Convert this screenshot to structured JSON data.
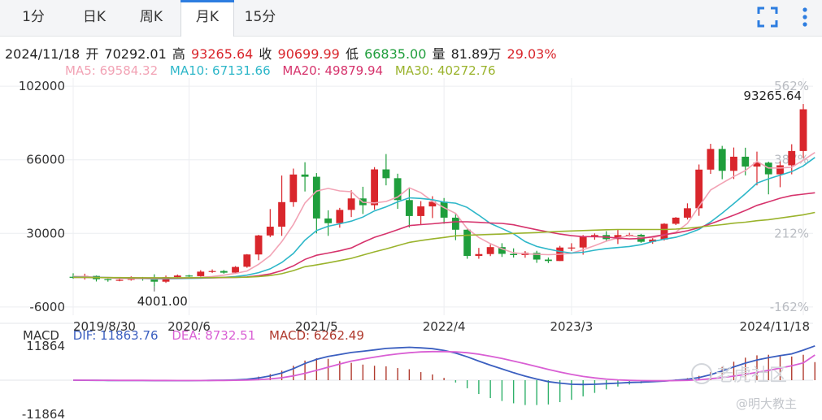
{
  "tabs": [
    {
      "label": "1分",
      "active": false
    },
    {
      "label": "日K",
      "active": false
    },
    {
      "label": "周K",
      "active": false
    },
    {
      "label": "月K",
      "active": true
    },
    {
      "label": "15分",
      "active": false
    }
  ],
  "toolbar": {
    "fullscreen_icon": "fullscreen-icon",
    "more_icon": "more-vertical-icon"
  },
  "info": {
    "date": "2024/11/18",
    "open_label": "开",
    "open_value": "70292.01",
    "high_label": "高",
    "high_value": "93265.64",
    "close_label": "收",
    "close_value": "90699.99",
    "low_label": "低",
    "low_value": "66835.00",
    "volume_label": "量",
    "volume_value": "81.89万",
    "change_value": "29.03%"
  },
  "ma": {
    "ma5": "MA5: 69584.32",
    "ma10": "MA10: 67131.66",
    "ma20": "MA20: 49879.94",
    "ma30": "MA30: 40272.76"
  },
  "macd": {
    "title": "MACD",
    "dif": "DIF: 11863.76",
    "dea": "DEA: 8732.51",
    "macd": "MACD: 6262.49"
  },
  "watermark": {
    "logo_text": "老虎社区",
    "author": "@明大教主"
  },
  "colors": {
    "up": "#d9262c",
    "down": "#1f9e3c",
    "ma5": "#f2a3b5",
    "ma10": "#2eb7c9",
    "ma20": "#d6336c",
    "ma30": "#9ab32c",
    "dif": "#3b5fc0",
    "dea": "#d95fd4",
    "accent": "#2d7de0"
  },
  "chart_data": [
    {
      "type": "candlestick",
      "title": "",
      "y_tick_labels": [
        "102000",
        "66000",
        "30000",
        "-6000"
      ],
      "y_ticks": [
        102000,
        66000,
        30000,
        -6000
      ],
      "right_tick_labels": [
        "562%",
        "387%",
        "212%",
        "-162%"
      ],
      "x_tick_labels": [
        "2019/8/30",
        "2020/6",
        "2021/5",
        "2022/4",
        "2023/3",
        "2024/11/18"
      ],
      "x_tick_index": [
        0,
        10,
        21,
        32,
        43,
        63
      ],
      "ylim": [
        -10000,
        106000
      ],
      "max_label": "93265.64",
      "min_label": "4001.00",
      "candles": [
        {
          "o": 8800,
          "c": 8300,
          "h": 10500,
          "l": 7800
        },
        {
          "o": 8300,
          "c": 9200,
          "h": 10300,
          "l": 7400
        },
        {
          "o": 9200,
          "c": 7600,
          "h": 9400,
          "l": 6500
        },
        {
          "o": 7600,
          "c": 7200,
          "h": 7800,
          "l": 6400
        },
        {
          "o": 7200,
          "c": 7300,
          "h": 7700,
          "l": 6600
        },
        {
          "o": 7300,
          "c": 8500,
          "h": 9000,
          "l": 6900
        },
        {
          "o": 8500,
          "c": 8300,
          "h": 8700,
          "l": 6900
        },
        {
          "o": 8400,
          "c": 6400,
          "h": 10000,
          "l": 4001
        },
        {
          "o": 6400,
          "c": 8600,
          "h": 9400,
          "l": 5800
        },
        {
          "o": 8600,
          "c": 9400,
          "h": 9900,
          "l": 8300
        },
        {
          "o": 9400,
          "c": 9100,
          "h": 9800,
          "l": 8700
        },
        {
          "o": 9100,
          "c": 11300,
          "h": 12000,
          "l": 8900
        },
        {
          "o": 11300,
          "c": 11600,
          "h": 12400,
          "l": 10700
        },
        {
          "o": 11600,
          "c": 10800,
          "h": 12100,
          "l": 10300
        },
        {
          "o": 10800,
          "c": 13600,
          "h": 14000,
          "l": 10200
        },
        {
          "o": 13700,
          "c": 19700,
          "h": 19900,
          "l": 13200
        },
        {
          "o": 19700,
          "c": 29000,
          "h": 29300,
          "l": 16900
        },
        {
          "o": 29000,
          "c": 33300,
          "h": 41900,
          "l": 28200
        },
        {
          "o": 33300,
          "c": 45300,
          "h": 58300,
          "l": 28800
        },
        {
          "o": 45300,
          "c": 58800,
          "h": 61700,
          "l": 43000
        },
        {
          "o": 58800,
          "c": 57700,
          "h": 64800,
          "l": 50500
        },
        {
          "o": 57700,
          "c": 37300,
          "h": 59500,
          "l": 30000
        },
        {
          "o": 37300,
          "c": 35000,
          "h": 41300,
          "l": 28800
        },
        {
          "o": 35000,
          "c": 41500,
          "h": 42500,
          "l": 32800
        },
        {
          "o": 41500,
          "c": 47100,
          "h": 51100,
          "l": 38000
        },
        {
          "o": 47100,
          "c": 43800,
          "h": 52800,
          "l": 39500
        },
        {
          "o": 43800,
          "c": 61300,
          "h": 62400,
          "l": 41600
        },
        {
          "o": 61300,
          "c": 57000,
          "h": 68800,
          "l": 53500
        },
        {
          "o": 57000,
          "c": 46300,
          "h": 59200,
          "l": 42000
        },
        {
          "o": 46300,
          "c": 38500,
          "h": 51900,
          "l": 32900
        },
        {
          "o": 38500,
          "c": 43200,
          "h": 45800,
          "l": 34300
        },
        {
          "o": 43200,
          "c": 45500,
          "h": 48200,
          "l": 37500
        },
        {
          "o": 45500,
          "c": 37700,
          "h": 47300,
          "l": 34700
        },
        {
          "o": 37700,
          "c": 31800,
          "h": 40000,
          "l": 26700
        },
        {
          "o": 31800,
          "c": 19000,
          "h": 32300,
          "l": 17600
        },
        {
          "o": 19000,
          "c": 19900,
          "h": 22900,
          "l": 17600
        },
        {
          "o": 19900,
          "c": 23300,
          "h": 24600,
          "l": 18900
        },
        {
          "o": 23300,
          "c": 20000,
          "h": 25200,
          "l": 18500
        },
        {
          "o": 20000,
          "c": 19400,
          "h": 22700,
          "l": 18200
        },
        {
          "o": 19400,
          "c": 20500,
          "h": 21400,
          "l": 18100
        },
        {
          "o": 20500,
          "c": 17200,
          "h": 21500,
          "l": 15600
        },
        {
          "o": 17200,
          "c": 16500,
          "h": 18200,
          "l": 15500
        },
        {
          "o": 16500,
          "c": 23100,
          "h": 23900,
          "l": 16500
        },
        {
          "o": 23100,
          "c": 23100,
          "h": 25200,
          "l": 21400
        },
        {
          "o": 23100,
          "c": 28500,
          "h": 29200,
          "l": 19600
        },
        {
          "o": 28500,
          "c": 29200,
          "h": 30000,
          "l": 26900
        },
        {
          "o": 29200,
          "c": 27200,
          "h": 31100,
          "l": 26300
        },
        {
          "o": 27200,
          "c": 29200,
          "h": 31800,
          "l": 24800
        },
        {
          "o": 29200,
          "c": 29300,
          "h": 30300,
          "l": 28400
        },
        {
          "o": 29300,
          "c": 25900,
          "h": 29800,
          "l": 25400
        },
        {
          "o": 25900,
          "c": 27000,
          "h": 28200,
          "l": 24900
        },
        {
          "o": 27000,
          "c": 34700,
          "h": 35000,
          "l": 26500
        },
        {
          "o": 34700,
          "c": 37700,
          "h": 38000,
          "l": 34100
        },
        {
          "o": 37700,
          "c": 42300,
          "h": 44700,
          "l": 36800
        },
        {
          "o": 42300,
          "c": 61200,
          "h": 63700,
          "l": 38600
        },
        {
          "o": 61200,
          "c": 71300,
          "h": 73800,
          "l": 59100
        },
        {
          "o": 71300,
          "c": 60600,
          "h": 72800,
          "l": 56500
        },
        {
          "o": 60600,
          "c": 67500,
          "h": 72000,
          "l": 56600
        },
        {
          "o": 67500,
          "c": 62700,
          "h": 71900,
          "l": 58400
        },
        {
          "o": 62700,
          "c": 64600,
          "h": 70000,
          "l": 53500
        },
        {
          "o": 64600,
          "c": 58900,
          "h": 65100,
          "l": 49100
        },
        {
          "o": 58900,
          "c": 63300,
          "h": 65200,
          "l": 52600
        },
        {
          "o": 63300,
          "c": 70300,
          "h": 73600,
          "l": 58900
        },
        {
          "o": 70292.01,
          "c": 90699.99,
          "h": 93265.64,
          "l": 66835
        }
      ],
      "series": [
        {
          "name": "MA5",
          "values": [
            9000,
            8900,
            8500,
            8200,
            8000,
            7900,
            7900,
            7700,
            7800,
            8000,
            8300,
            8500,
            8900,
            9600,
            10500,
            11600,
            14900,
            19100,
            26000,
            34300,
            44900,
            50700,
            52000,
            50800,
            50400,
            45200,
            44900,
            45600,
            47800,
            52300,
            49900,
            45700,
            42600,
            39800,
            32400,
            28000,
            25000,
            22500,
            20500,
            20000,
            19800,
            19600,
            19800,
            20300,
            22000,
            24000,
            26200,
            27800,
            28900,
            28100,
            27900,
            29300,
            30600,
            34900,
            43200,
            51200,
            54600,
            57800,
            60700,
            65200,
            62000,
            62000,
            62400,
            65800,
            69584
          ]
        },
        {
          "name": "MA10",
          "values": [
            8700,
            8600,
            8500,
            8400,
            8300,
            8200,
            8100,
            8000,
            7900,
            7900,
            8000,
            8100,
            8300,
            8500,
            8900,
            9600,
            10800,
            12700,
            15800,
            20200,
            26700,
            31400,
            33500,
            34700,
            36000,
            38000,
            41000,
            43000,
            45400,
            47400,
            47100,
            46500,
            45300,
            44800,
            42700,
            38900,
            34900,
            32400,
            29800,
            26000,
            23600,
            22300,
            21200,
            20400,
            20800,
            21800,
            22600,
            23100,
            23600,
            24500,
            26000,
            27200,
            28100,
            29800,
            32000,
            35600,
            39900,
            44600,
            49400,
            54600,
            56700,
            58500,
            60200,
            63000,
            67131
          ]
        },
        {
          "name": "MA20",
          "values": [
            8500,
            8500,
            8400,
            8400,
            8300,
            8300,
            8200,
            8200,
            8100,
            8100,
            8200,
            8300,
            8300,
            8400,
            8500,
            8700,
            9300,
            10200,
            11800,
            14100,
            17300,
            19300,
            20400,
            21500,
            22900,
            25600,
            28100,
            29900,
            31800,
            33800,
            34300,
            34700,
            35200,
            35700,
            35700,
            35400,
            35100,
            34900,
            34200,
            33000,
            31800,
            30700,
            29700,
            28900,
            28400,
            28400,
            28200,
            27700,
            27300,
            27500,
            28400,
            29400,
            30200,
            31300,
            32800,
            34700,
            36800,
            38900,
            41200,
            43700,
            45400,
            47200,
            48500,
            49200,
            49879
          ]
        },
        {
          "name": "MA30",
          "values": [
            8500,
            8500,
            8400,
            8400,
            8400,
            8300,
            8300,
            8300,
            8300,
            8300,
            8300,
            8400,
            8400,
            8500,
            8500,
            8600,
            8900,
            9400,
            10300,
            11800,
            13700,
            14600,
            15600,
            16700,
            17800,
            19400,
            21000,
            22400,
            24000,
            25600,
            26500,
            27300,
            28000,
            28800,
            29100,
            29300,
            29500,
            29700,
            30000,
            30200,
            30400,
            30700,
            31000,
            31200,
            31400,
            31600,
            31800,
            31900,
            31900,
            31900,
            31900,
            31900,
            32100,
            32500,
            33100,
            33700,
            34300,
            35000,
            35500,
            36200,
            36700,
            37500,
            38300,
            39100,
            40272
          ]
        }
      ]
    },
    {
      "type": "macd",
      "title": "MACD",
      "y_tick_labels": [
        "11864",
        "-11864"
      ],
      "y_ticks": [
        11864,
        -11864
      ],
      "ylim": [
        -13500,
        13500
      ],
      "series": [
        {
          "name": "DIF",
          "values": [
            0,
            -30,
            -60,
            -80,
            -100,
            -110,
            -120,
            -140,
            -150,
            -150,
            -130,
            -100,
            -60,
            0,
            100,
            300,
            800,
            1500,
            2500,
            4000,
            5800,
            7200,
            8200,
            8900,
            9600,
            10000,
            10500,
            11000,
            11200,
            11400,
            11200,
            10900,
            10300,
            9400,
            8100,
            6600,
            5200,
            3900,
            2600,
            1400,
            400,
            -500,
            -1000,
            -1400,
            -1500,
            -1400,
            -1200,
            -1000,
            -800,
            -700,
            -500,
            -300,
            0,
            300,
            900,
            1900,
            3200,
            4600,
            5900,
            7000,
            7800,
            8500,
            9100,
            10400,
            11863.76
          ]
        },
        {
          "name": "DEA",
          "values": [
            0,
            -10,
            -20,
            -35,
            -50,
            -60,
            -70,
            -80,
            -90,
            -100,
            -105,
            -105,
            -95,
            -75,
            -40,
            30,
            180,
            450,
            850,
            1500,
            2400,
            3400,
            4500,
            5600,
            6600,
            7300,
            8000,
            8600,
            9100,
            9500,
            9800,
            9900,
            9900,
            9800,
            9500,
            9000,
            8300,
            7500,
            6600,
            5700,
            4700,
            3700,
            2800,
            2000,
            1300,
            800,
            400,
            100,
            -50,
            -150,
            -200,
            -200,
            -150,
            -50,
            150,
            500,
            900,
            1400,
            2000,
            2700,
            3400,
            4200,
            5000,
            6000,
            8732.51
          ]
        },
        {
          "name": "MACD",
          "values": [
            0,
            -40,
            -80,
            -90,
            -100,
            -100,
            -100,
            -120,
            -120,
            -100,
            -50,
            10,
            70,
            150,
            280,
            540,
            1240,
            2100,
            3300,
            5000,
            6800,
            7600,
            7400,
            6600,
            6000,
            5400,
            5000,
            4800,
            4200,
            3800,
            2800,
            2000,
            800,
            -800,
            -2800,
            -4800,
            -6200,
            -7200,
            -8000,
            -8600,
            -8600,
            -8400,
            -7600,
            -6800,
            -5600,
            -4400,
            -3200,
            -2200,
            -1500,
            -1100,
            -600,
            -200,
            300,
            700,
            1500,
            2800,
            4600,
            6400,
            7800,
            8600,
            8800,
            8600,
            8200,
            8800,
            6262.49
          ]
        }
      ]
    }
  ]
}
